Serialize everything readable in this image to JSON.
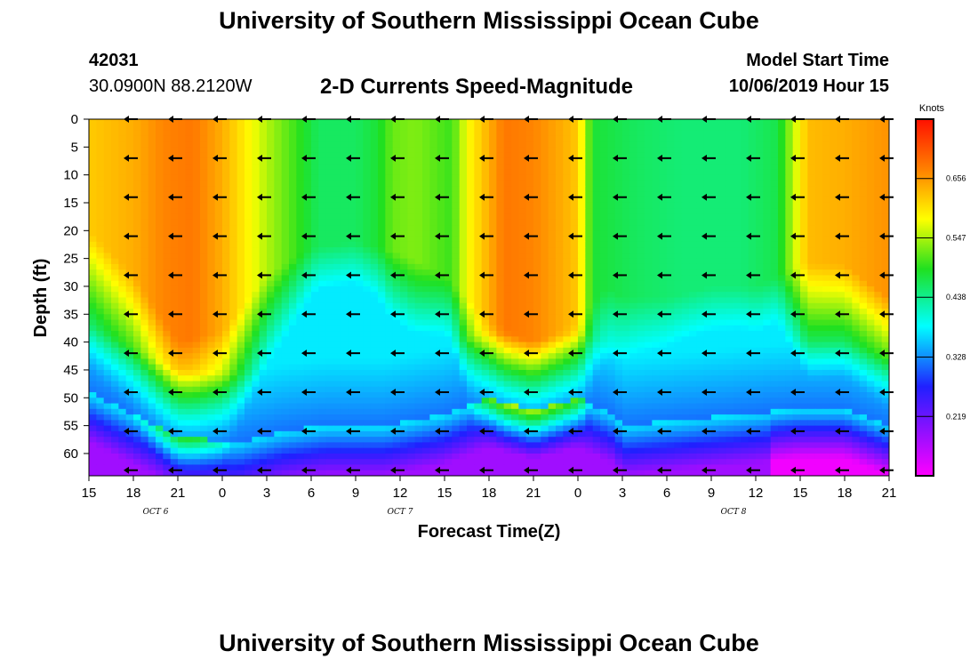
{
  "header": {
    "title": "University of Southern Mississippi Ocean Cube",
    "station_id": "42031",
    "station_coords": "30.0900N 88.2120W",
    "chart_title": "2-D Currents Speed-Magnitude",
    "start_label": "Model Start Time",
    "start_value": "10/06/2019 Hour 15"
  },
  "footer": {
    "title": "University of Southern Mississippi Ocean Cube"
  },
  "chart_data": {
    "type": "heatmap",
    "title": "2-D Currents Speed-Magnitude",
    "xlabel": "Forecast Time(Z)",
    "ylabel": "Depth (ft)",
    "x_ticks": [
      "15",
      "18",
      "21",
      "0",
      "3",
      "6",
      "9",
      "12",
      "15",
      "18",
      "21",
      "0",
      "3",
      "6",
      "9",
      "12",
      "15",
      "18",
      "21"
    ],
    "x_tick_hours": [
      0,
      3,
      6,
      9,
      12,
      15,
      18,
      21,
      24,
      27,
      30,
      33,
      36,
      39,
      42,
      45,
      48,
      51,
      54
    ],
    "xlim": [
      0,
      54
    ],
    "day_labels": [
      {
        "label": "OCT 6",
        "hour": 4.5
      },
      {
        "label": "OCT 7",
        "hour": 21
      },
      {
        "label": "OCT 8",
        "hour": 43.5
      }
    ],
    "y_ticks": [
      0,
      5,
      10,
      15,
      20,
      25,
      30,
      35,
      40,
      45,
      50,
      55,
      60
    ],
    "ylim": [
      0,
      64
    ],
    "colorbar": {
      "unit": "Knots",
      "ticks": [
        "0.656",
        "0.547",
        "0.438",
        "0.328",
        "0.219"
      ],
      "tick_values": [
        0.656,
        0.547,
        0.438,
        0.328,
        0.219
      ],
      "range": [
        0.11,
        0.765
      ]
    },
    "arrow_direction": "west",
    "arrow_hours": [
      3,
      6,
      9,
      12,
      15,
      18,
      21,
      24,
      27,
      30,
      33,
      36,
      39,
      42,
      45,
      48,
      51,
      54
    ],
    "arrow_depths": [
      0,
      7,
      14,
      21,
      28,
      35,
      42,
      49,
      56,
      63
    ]
  }
}
